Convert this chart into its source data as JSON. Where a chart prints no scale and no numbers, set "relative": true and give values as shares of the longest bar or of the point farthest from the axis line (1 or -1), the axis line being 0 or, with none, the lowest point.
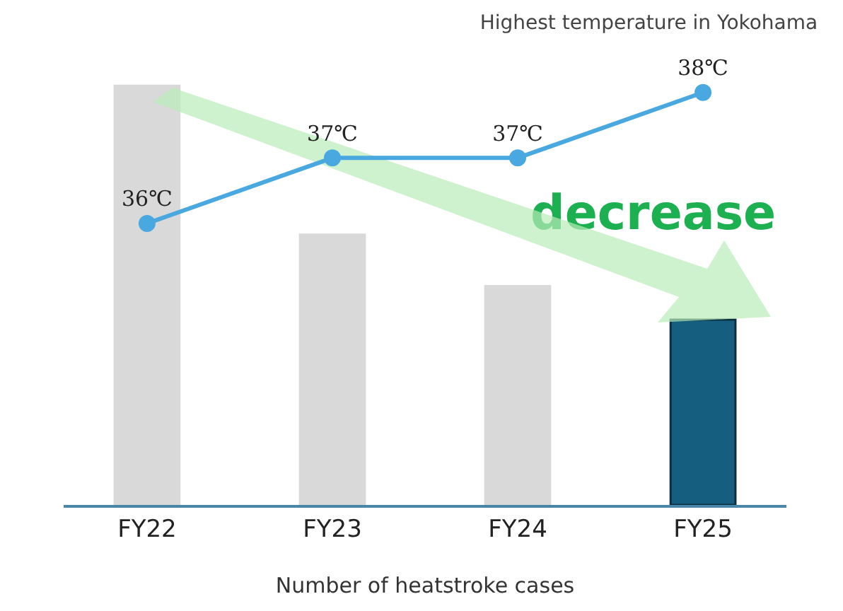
{
  "chart_data": [
    {
      "type": "bar",
      "xlabel": "Number of heatstroke cases",
      "categories": [
        "FY22",
        "FY23",
        "FY24",
        "FY25"
      ],
      "relative": true,
      "annotations": [
        "decrease"
      ],
      "grid": false,
      "legend": false,
      "series": [
        {
          "type": "bar",
          "colors": [
            "#d9d9d9",
            "#d9d9d9",
            "#d9d9d9",
            "#165e80"
          ],
          "values": [
            1,
            0.645,
            0.522,
            0.442
          ]
        }
      ]
    },
    {
      "type": "line",
      "title": "Highest temperature in Yokohama",
      "categories": [
        null,
        null,
        null,
        null
      ],
      "grid": false,
      "legend": false,
      "marker": "circle",
      "series": [
        {
          "type": "line",
          "color": "#4aa8e0",
          "values": [
            36,
            37,
            37,
            38
          ],
          "value_labels": [
            "36℃",
            "37℃",
            "37℃",
            "38℃"
          ]
        }
      ]
    }
  ]
}
